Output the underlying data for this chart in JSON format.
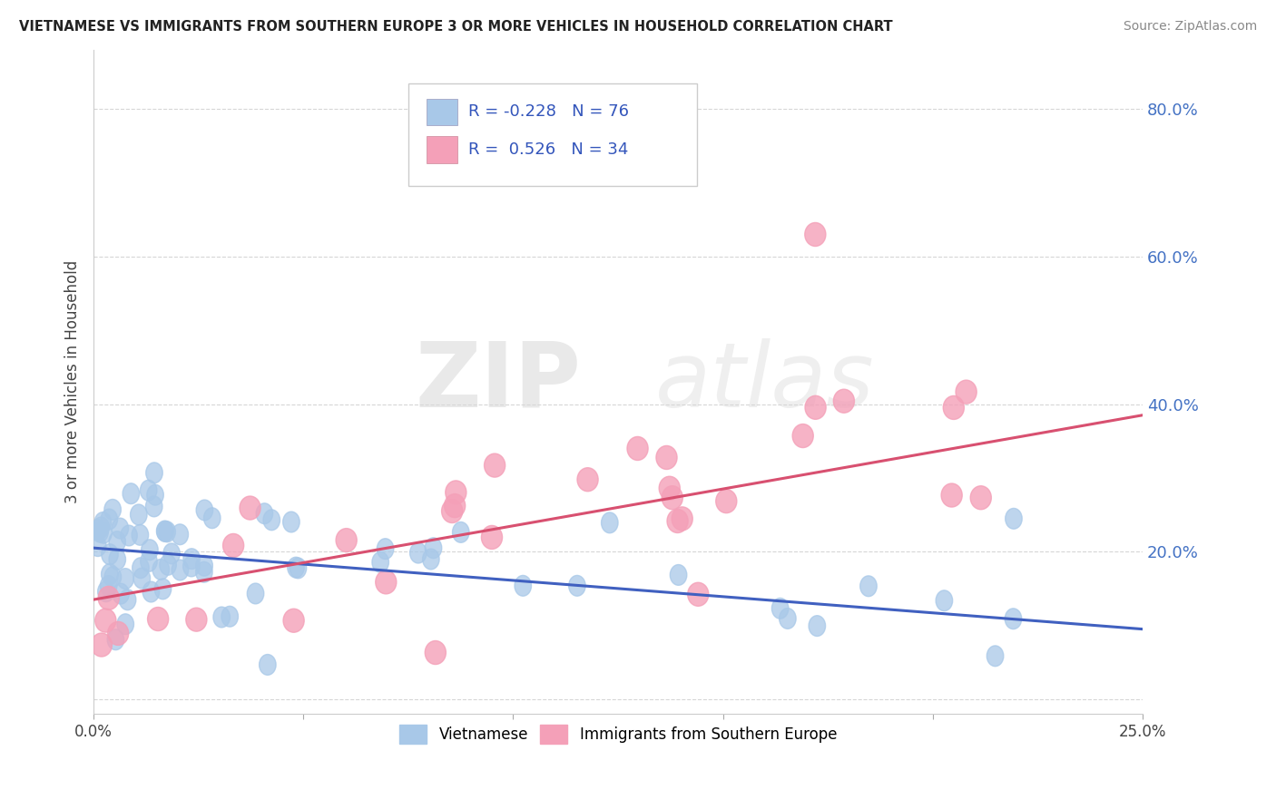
{
  "title": "VIETNAMESE VS IMMIGRANTS FROM SOUTHERN EUROPE 3 OR MORE VEHICLES IN HOUSEHOLD CORRELATION CHART",
  "source": "Source: ZipAtlas.com",
  "ylabel": "3 or more Vehicles in Household",
  "xmin": 0.0,
  "xmax": 0.25,
  "ymin": -0.02,
  "ymax": 0.88,
  "blue_R": -0.228,
  "blue_N": 76,
  "pink_R": 0.526,
  "pink_N": 34,
  "blue_color": "#a8c8e8",
  "pink_color": "#f4a0b8",
  "blue_line_color": "#4060c0",
  "pink_line_color": "#d85070",
  "legend_label_blue": "Vietnamese",
  "legend_label_pink": "Immigrants from Southern Europe",
  "watermark_zip": "ZIP",
  "watermark_atlas": "atlas",
  "background_color": "#ffffff",
  "grid_color": "#cccccc",
  "ytick_color": "#4472c4",
  "blue_line_y0": 0.205,
  "blue_line_y1": 0.095,
  "pink_line_y0": 0.135,
  "pink_line_y1": 0.385
}
